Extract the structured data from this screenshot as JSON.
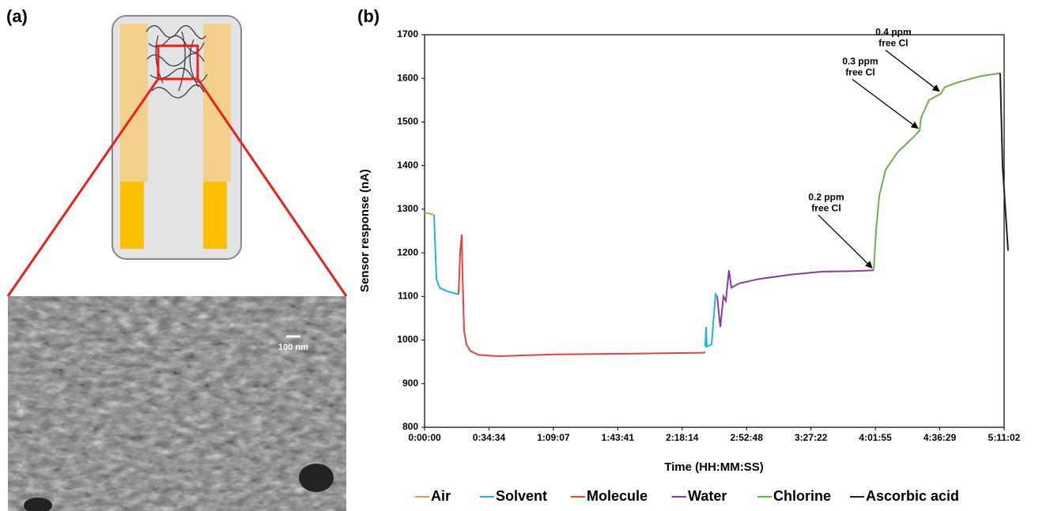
{
  "panel_a": {
    "label": "(a)",
    "scale_bar": "100 nm"
  },
  "chart_data": {
    "type": "line",
    "panel_label": "(b)",
    "x_label": "Time (HH:MM:SS)",
    "y_label": "Sensor response (nA)",
    "xlim": [
      0,
      18662
    ],
    "ylim": [
      800,
      1700
    ],
    "xticks": [
      {
        "value": 0,
        "label": "0:00:00"
      },
      {
        "value": 2074,
        "label": "0:34:34"
      },
      {
        "value": 4147,
        "label": "1:09:07"
      },
      {
        "value": 6221,
        "label": "1:43:41"
      },
      {
        "value": 8294,
        "label": "2:18:14"
      },
      {
        "value": 10368,
        "label": "2:52:48"
      },
      {
        "value": 12442,
        "label": "3:27:22"
      },
      {
        "value": 14515,
        "label": "4:01:55"
      },
      {
        "value": 16589,
        "label": "4:36:29"
      },
      {
        "value": 18662,
        "label": "5:11:02"
      }
    ],
    "yticks": [
      800,
      900,
      1000,
      1100,
      1200,
      1300,
      1400,
      1500,
      1600,
      1700
    ],
    "series": [
      {
        "name": "Air",
        "color": "#d9a035",
        "x": [
          0,
          150,
          305
        ],
        "values": [
          1292,
          1290,
          1287
        ]
      },
      {
        "name": "Solvent",
        "color": "#1bb5e0",
        "x": [
          305,
          382,
          484,
          713,
          1095,
          null,
          9038,
          9064,
          9089,
          9242,
          9369,
          9420
        ],
        "values": [
          1287,
          1140,
          1120,
          1112,
          1105,
          null,
          985,
          1030,
          985,
          990,
          1105,
          1100
        ]
      },
      {
        "name": "Molecule",
        "color": "#e8413c",
        "x": [
          1095,
          1146,
          1197,
          1222,
          1273,
          1349,
          1477,
          1731,
          2368,
          4150,
          6696,
          8987,
          9038
        ],
        "values": [
          1105,
          1200,
          1242,
          1150,
          1020,
          990,
          975,
          966,
          963,
          967,
          969,
          971,
          972
        ]
      },
      {
        "name": "Water",
        "color": "#8a3aa0",
        "x": [
          9420,
          9522,
          9624,
          9700,
          9802,
          9878,
          10133,
          10769,
          11788,
          12806,
          13824,
          14461
        ],
        "values": [
          1100,
          1030,
          1100,
          1090,
          1160,
          1120,
          1130,
          1140,
          1150,
          1157,
          1158,
          1160
        ]
      },
      {
        "name": "Chlorine",
        "color": "#6ab04c",
        "x": [
          14461,
          14538,
          14640,
          14843,
          15225,
          15734,
          15938,
          15989,
          16243,
          16625,
          16753,
          17135,
          17899,
          18535
        ],
        "values": [
          1160,
          1250,
          1330,
          1390,
          1430,
          1465,
          1480,
          1510,
          1550,
          1565,
          1580,
          1590,
          1605,
          1612
        ]
      },
      {
        "name": "Ascorbic acid",
        "color": "#222222",
        "x": [
          18535,
          18611,
          18789
        ],
        "values": [
          1612,
          1400,
          1205
        ]
      }
    ],
    "annotations": [
      {
        "lines": [
          "0.2 ppm",
          "free Cl"
        ],
        "x": 14461,
        "y": 1160
      },
      {
        "lines": [
          "0.3 ppm",
          "free Cl"
        ],
        "x": 15938,
        "y": 1480
      },
      {
        "lines": [
          "0.4 ppm",
          "free Cl"
        ],
        "x": 16625,
        "y": 1565
      }
    ]
  }
}
